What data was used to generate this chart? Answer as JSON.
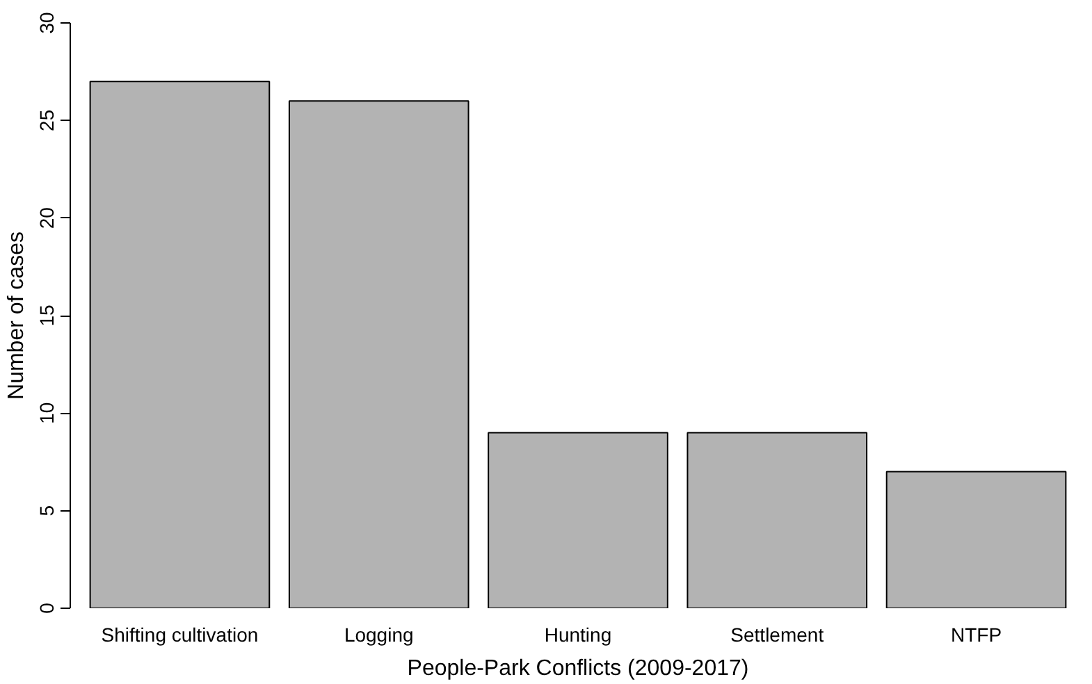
{
  "chart_data": {
    "type": "bar",
    "xlabel": "People-Park Conflicts (2009-2017)",
    "ylabel": "Number of cases",
    "categories": [
      "Shifting cultivation",
      "Logging",
      "Hunting",
      "Settlement",
      "NTFP"
    ],
    "values": [
      27,
      26,
      9,
      9,
      7
    ],
    "color": "#b3b3b3",
    "ylim": [
      0,
      30
    ],
    "yticks": [
      0,
      5,
      10,
      15,
      20,
      25,
      30
    ],
    "grid": false
  }
}
